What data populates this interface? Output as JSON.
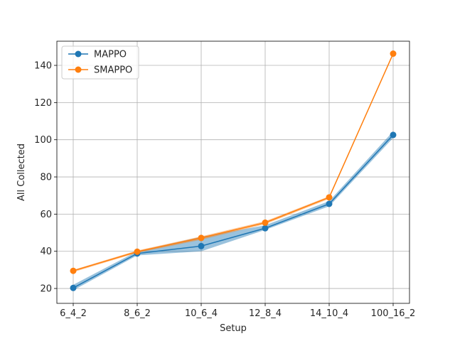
{
  "chart_data": {
    "type": "line",
    "title": "",
    "xlabel": "Setup",
    "ylabel": "All Collected",
    "categories": [
      "6_4_2",
      "8_6_2",
      "10_6_4",
      "12_8_4",
      "14_10_4",
      "100_16_2"
    ],
    "ylim": [
      12,
      153
    ],
    "yticks": [
      20,
      40,
      60,
      80,
      100,
      120,
      140
    ],
    "grid": true,
    "legend_position": "top-left",
    "series": [
      {
        "name": "MAPPO",
        "color": "#1f77b4",
        "values": [
          20.3,
          38.8,
          42.8,
          52.4,
          65.5,
          102.6
        ],
        "band_low": [
          19.0,
          37.8,
          40.0,
          51.5,
          64.2,
          101.0
        ],
        "band_high": [
          22.0,
          40.0,
          47.8,
          54.0,
          67.0,
          104.5
        ]
      },
      {
        "name": "SMAPPO",
        "color": "#ff7f0e",
        "values": [
          29.5,
          39.8,
          47.2,
          55.4,
          69.0,
          146.3
        ],
        "band_low": [
          28.8,
          39.2,
          46.2,
          54.6,
          68.2,
          145.8
        ],
        "band_high": [
          30.0,
          40.4,
          48.0,
          56.2,
          69.6,
          146.8
        ]
      }
    ]
  }
}
